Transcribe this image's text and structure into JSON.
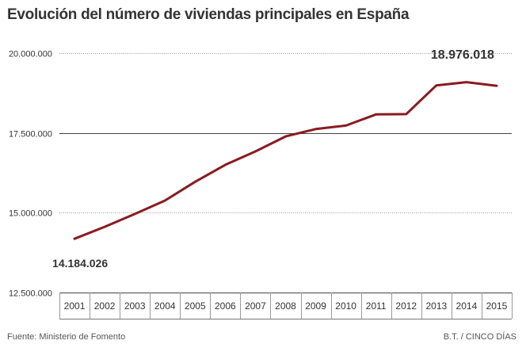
{
  "title": "Evolución del número de viviendas principales en España",
  "footer": {
    "source": "Fuente: Ministerio de Fomento",
    "credit": "B.T. / CINCO DÍAS"
  },
  "chart_data": {
    "type": "line",
    "title": "Evolución del número de viviendas principales en España",
    "xlabel": "",
    "ylabel": "",
    "categories": [
      "2001",
      "2002",
      "2003",
      "2004",
      "2005",
      "2006",
      "2007",
      "2008",
      "2009",
      "2010",
      "2011",
      "2012",
      "2013",
      "2014",
      "2015"
    ],
    "series": [
      {
        "name": "Viviendas principales",
        "color": "#8b1a1f",
        "values": [
          14184026,
          14560000,
          14960000,
          15380000,
          15970000,
          16500000,
          16920000,
          17390000,
          17620000,
          17730000,
          18080000,
          18090000,
          18990000,
          19090000,
          18976018
        ]
      }
    ],
    "ylim": [
      12500000,
      20000000
    ],
    "yticks": [
      12500000,
      15000000,
      17500000,
      20000000
    ],
    "ytick_labels": [
      "12.500.000",
      "15.000.000",
      "17.500.000",
      "20.000.000"
    ],
    "annotations": [
      {
        "category": "2001",
        "text": "14.184.026"
      },
      {
        "category": "2015",
        "text": "18.976.018"
      }
    ],
    "grid": true,
    "legend": "none"
  }
}
